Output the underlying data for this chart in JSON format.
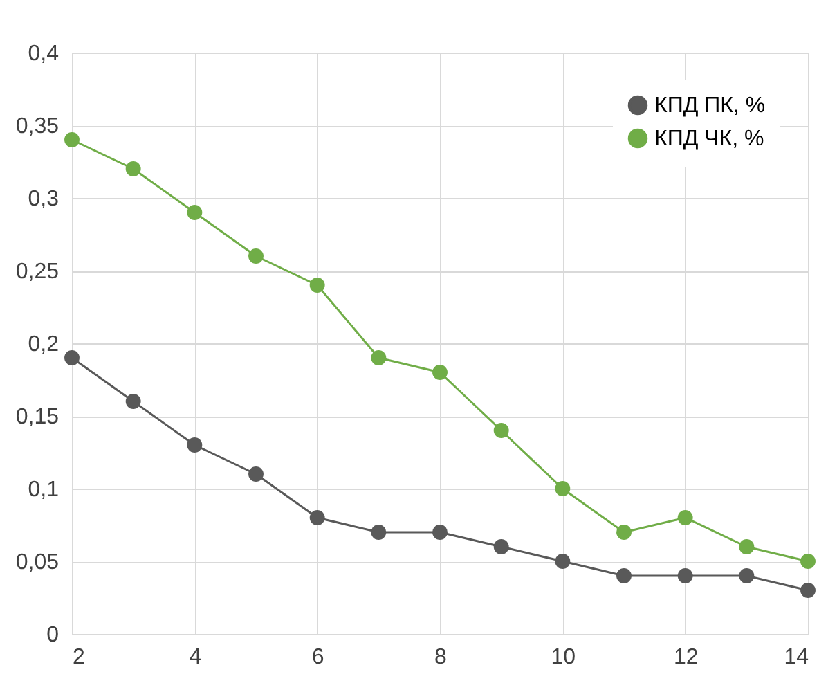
{
  "chart_data": {
    "type": "line",
    "x": [
      2,
      3,
      4,
      5,
      6,
      7,
      8,
      9,
      10,
      11,
      12,
      13,
      14
    ],
    "series": [
      {
        "name": "КПД ПК, %",
        "color": "#595959",
        "values": [
          0.19,
          0.16,
          0.13,
          0.11,
          0.08,
          0.07,
          0.07,
          0.06,
          0.05,
          0.04,
          0.04,
          0.04,
          0.03
        ]
      },
      {
        "name": "КПД ЧК, %",
        "color": "#70ad47",
        "values": [
          0.34,
          0.32,
          0.29,
          0.26,
          0.24,
          0.19,
          0.18,
          0.14,
          0.1,
          0.07,
          0.08,
          0.06,
          0.05
        ]
      }
    ],
    "xlim": [
      2,
      14
    ],
    "xticks": [
      2,
      4,
      6,
      8,
      10,
      12,
      14
    ],
    "ylim": [
      0,
      0.4
    ],
    "yticks": [
      {
        "value": 0,
        "label": "0"
      },
      {
        "value": 0.05,
        "label": "0,05"
      },
      {
        "value": 0.1,
        "label": "0,1"
      },
      {
        "value": 0.15,
        "label": "0,15"
      },
      {
        "value": 0.2,
        "label": "0,2"
      },
      {
        "value": 0.25,
        "label": "0,25"
      },
      {
        "value": 0.3,
        "label": "0,3"
      },
      {
        "value": 0.35,
        "label": "0,35"
      },
      {
        "value": 0.4,
        "label": "0,4"
      }
    ],
    "grid": true,
    "legend": "top right",
    "marker": "circle",
    "line_style": "solid"
  }
}
